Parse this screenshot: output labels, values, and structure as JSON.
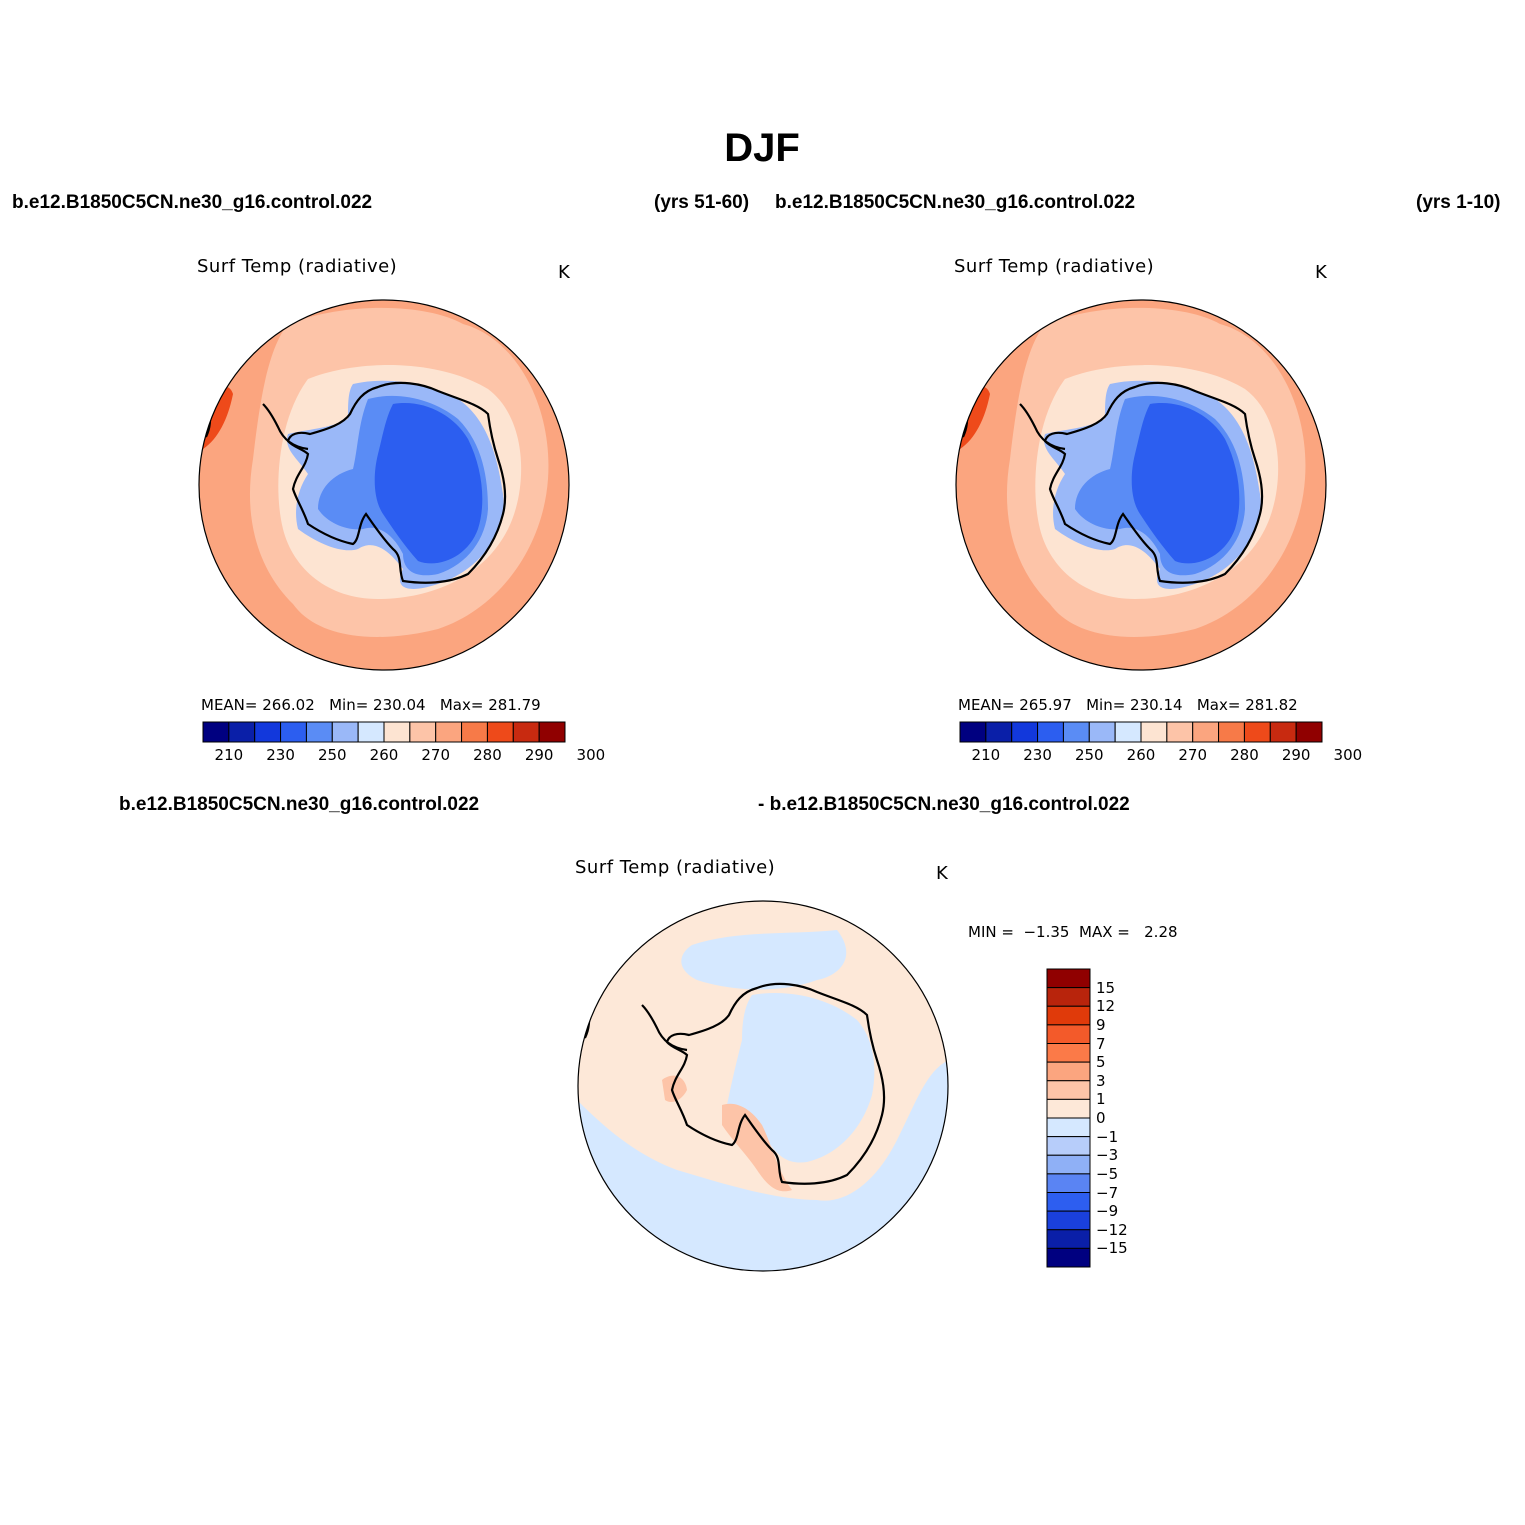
{
  "title": "DJF",
  "top_left": {
    "case": "b.e12.B1850C5CN.ne30_g16.control.022",
    "years": "(yrs 51-60)",
    "plot_title": "Surf Temp (radiative)",
    "units": "K",
    "mean_label": "MEAN=",
    "mean": "266.02",
    "min_label": "Min=",
    "min": "230.04",
    "max_label": "Max=",
    "max": "281.79",
    "ticks": [
      "210",
      "230",
      "250",
      "260",
      "270",
      "280",
      "290",
      "300"
    ]
  },
  "top_right": {
    "case": "b.e12.B1850C5CN.ne30_g16.control.022",
    "years": "(yrs 1-10)",
    "plot_title": "Surf Temp (radiative)",
    "units": "K",
    "mean_label": "MEAN=",
    "mean": "265.97",
    "min_label": "Min=",
    "min": "230.14",
    "max_label": "Max=",
    "max": "281.82",
    "ticks": [
      "210",
      "230",
      "250",
      "260",
      "270",
      "280",
      "290",
      "300"
    ]
  },
  "bottom": {
    "case_a": "b.e12.B1850C5CN.ne30_g16.control.022",
    "case_b": "- b.e12.B1850C5CN.ne30_g16.control.022",
    "plot_title": "Surf Temp (radiative)",
    "units": "K",
    "min_label": "MIN =",
    "min": "−1.35",
    "max_label": "MAX =",
    "max": "2.28",
    "ticks": [
      "15",
      "12",
      "9",
      "7",
      "5",
      "3",
      "1",
      "0",
      "−1",
      "−3",
      "−5",
      "−7",
      "−9",
      "−12",
      "−15"
    ]
  },
  "colors": {
    "abs_scale": [
      "#000080",
      "#0a1fa8",
      "#1238dc",
      "#2c5ef0",
      "#5a8cf5",
      "#9ab8f8",
      "#d5e8ff",
      "#fde4d2",
      "#fdc4a8",
      "#fba57f",
      "#f77a48",
      "#ee4a1a",
      "#c82a10",
      "#900000"
    ],
    "diff_scale": [
      "#900000",
      "#b8240c",
      "#e03a0a",
      "#f35a2a",
      "#fb7a48",
      "#fba57f",
      "#fdc4a8",
      "#fde8d8",
      "#d5e8ff",
      "#b7cdfa",
      "#8fb0f6",
      "#5a84f3",
      "#2d5ef0",
      "#1a40dc",
      "#0a1fa8",
      "#000080"
    ]
  }
}
